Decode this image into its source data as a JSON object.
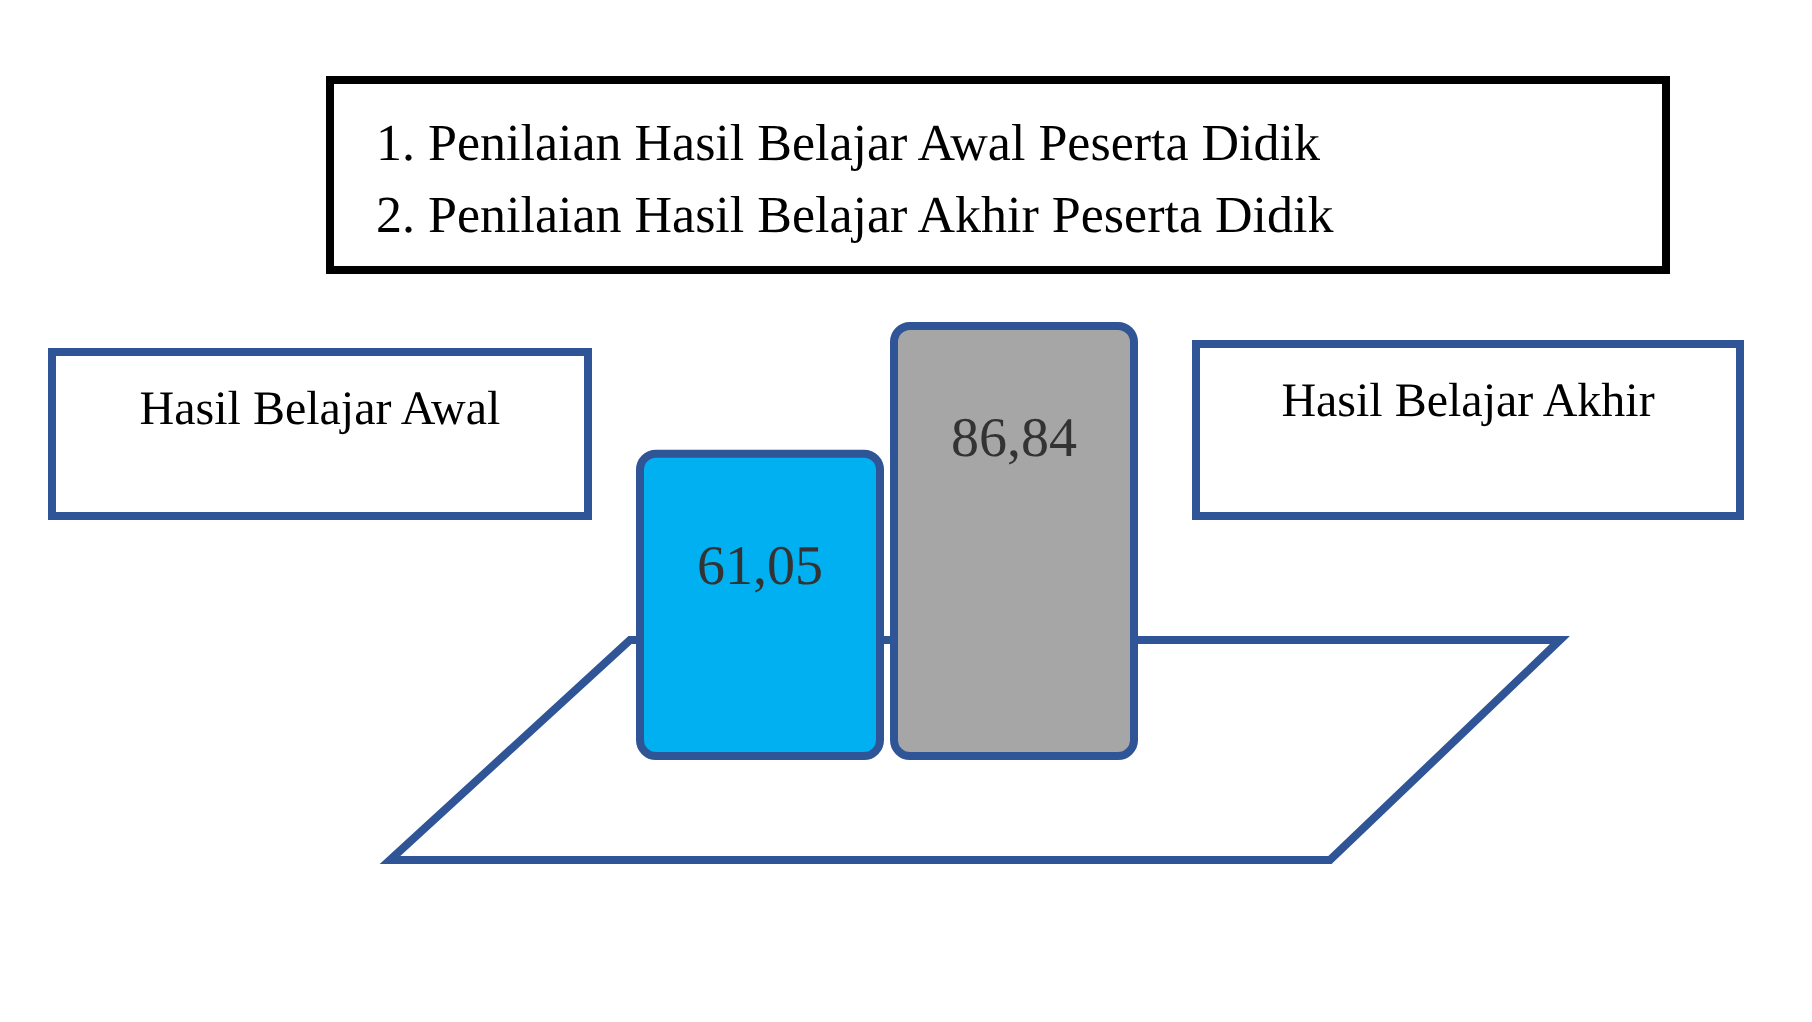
{
  "chart_data": {
    "type": "bar",
    "title": "1. Penilaian Hasil Belajar Awal Peserta Didik",
    "subtitle": "2. Penilaian Hasil Belajar Akhir Peserta Didik",
    "categories": [
      "Hasil Belajar Awal",
      "Hasil Belajar Akhir"
    ],
    "values": [
      61.05,
      86.84
    ],
    "colors": [
      "#00b0f0",
      "#a6a6a6"
    ],
    "value_labels": [
      "61,05",
      "86,84"
    ]
  }
}
